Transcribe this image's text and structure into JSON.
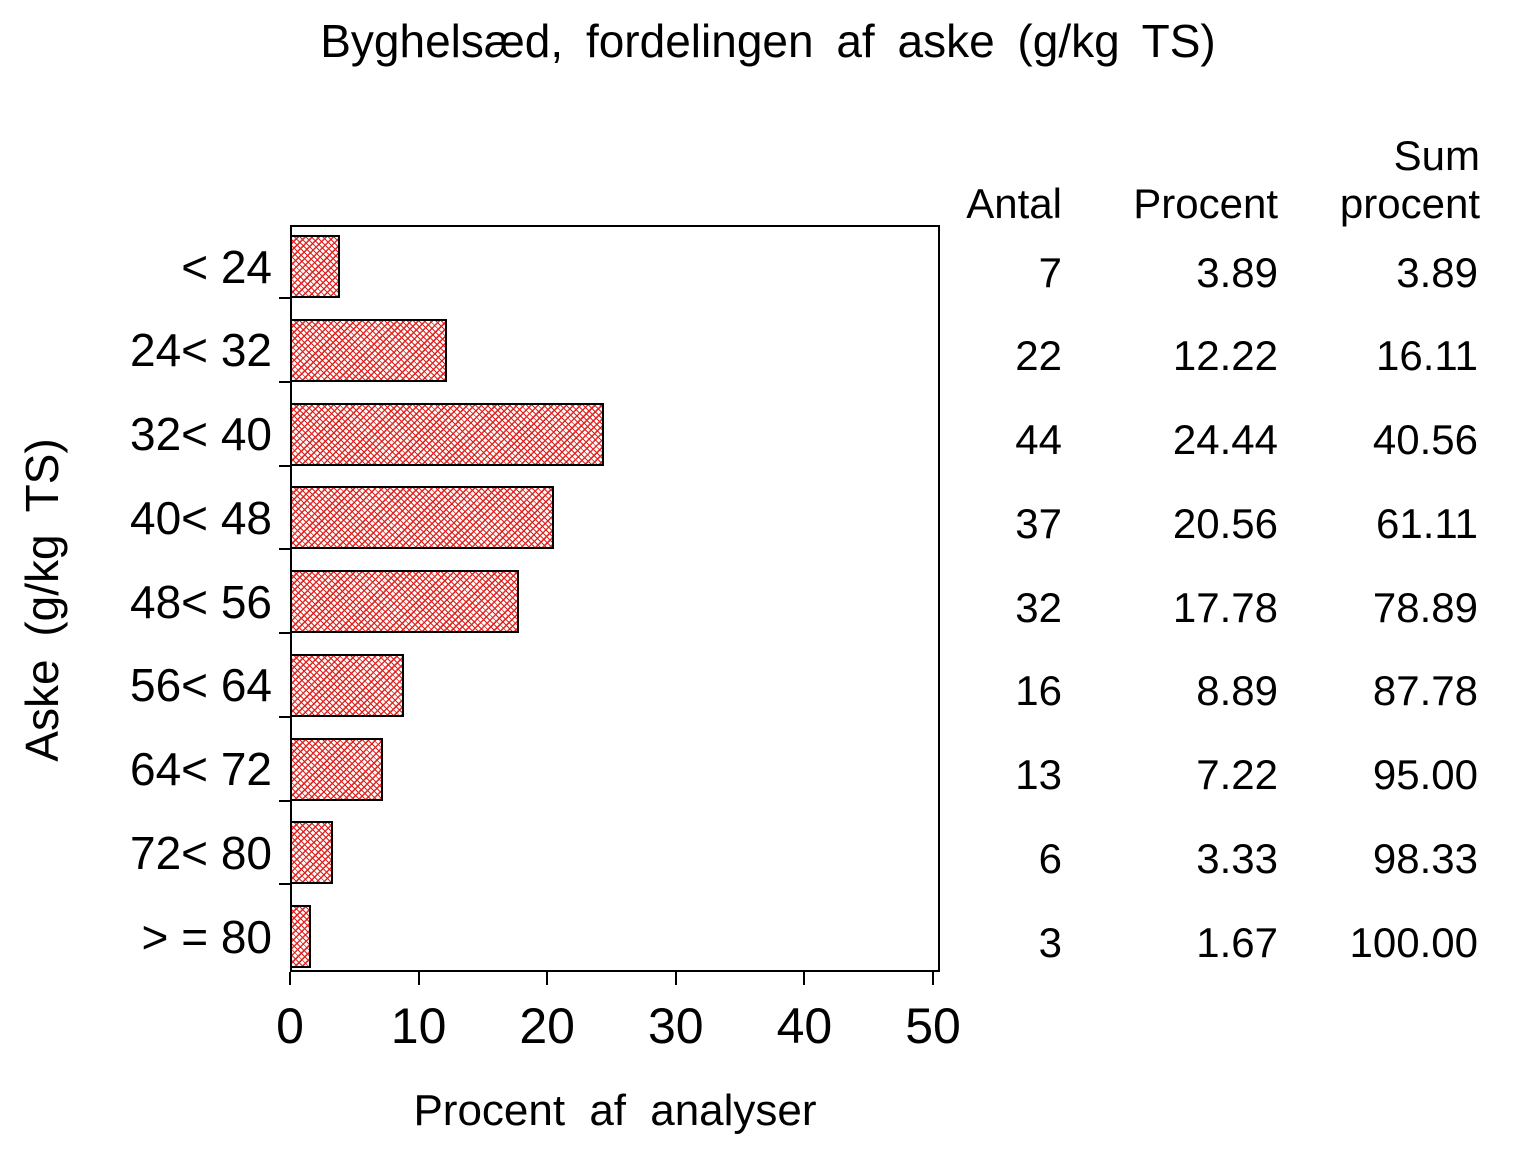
{
  "title": "Byghelsæd, fordelingen af aske (g/kg TS)",
  "chart_data": {
    "type": "bar",
    "orientation": "horizontal",
    "title": "Byghelsæd, fordelingen af aske (g/kg TS)",
    "xlabel": "Procent af analyser",
    "ylabel": "Aske (g/kg TS)",
    "xlim": [
      0,
      50
    ],
    "xticks": [
      0,
      10,
      20,
      30,
      40,
      50
    ],
    "grid": false,
    "legend": "none",
    "bar_style": "red diagonal crosshatch on white, black outline",
    "bar_color": "#e0201c",
    "frame_color": "#000000",
    "categories": [
      "< 24",
      "24< 32",
      "32< 40",
      "40< 48",
      "48< 56",
      "56< 64",
      "64< 72",
      "72< 80",
      "> = 80"
    ],
    "values": [
      3.89,
      12.22,
      24.44,
      20.56,
      17.78,
      8.89,
      7.22,
      3.33,
      1.67
    ]
  },
  "table": {
    "headers": {
      "antal": "Antal",
      "procent": "Procent",
      "sum_line1": "Sum",
      "sum_line2": "procent"
    },
    "rows": [
      {
        "antal": "7",
        "procent": "3.89",
        "sum": "3.89"
      },
      {
        "antal": "22",
        "procent": "12.22",
        "sum": "16.11"
      },
      {
        "antal": "44",
        "procent": "24.44",
        "sum": "40.56"
      },
      {
        "antal": "37",
        "procent": "20.56",
        "sum": "61.11"
      },
      {
        "antal": "32",
        "procent": "17.78",
        "sum": "78.89"
      },
      {
        "antal": "16",
        "procent": "8.89",
        "sum": "87.78"
      },
      {
        "antal": "13",
        "procent": "7.22",
        "sum": "95.00"
      },
      {
        "antal": "6",
        "procent": "3.33",
        "sum": "98.33"
      },
      {
        "antal": "3",
        "procent": "1.67",
        "sum": "100.00"
      }
    ]
  }
}
